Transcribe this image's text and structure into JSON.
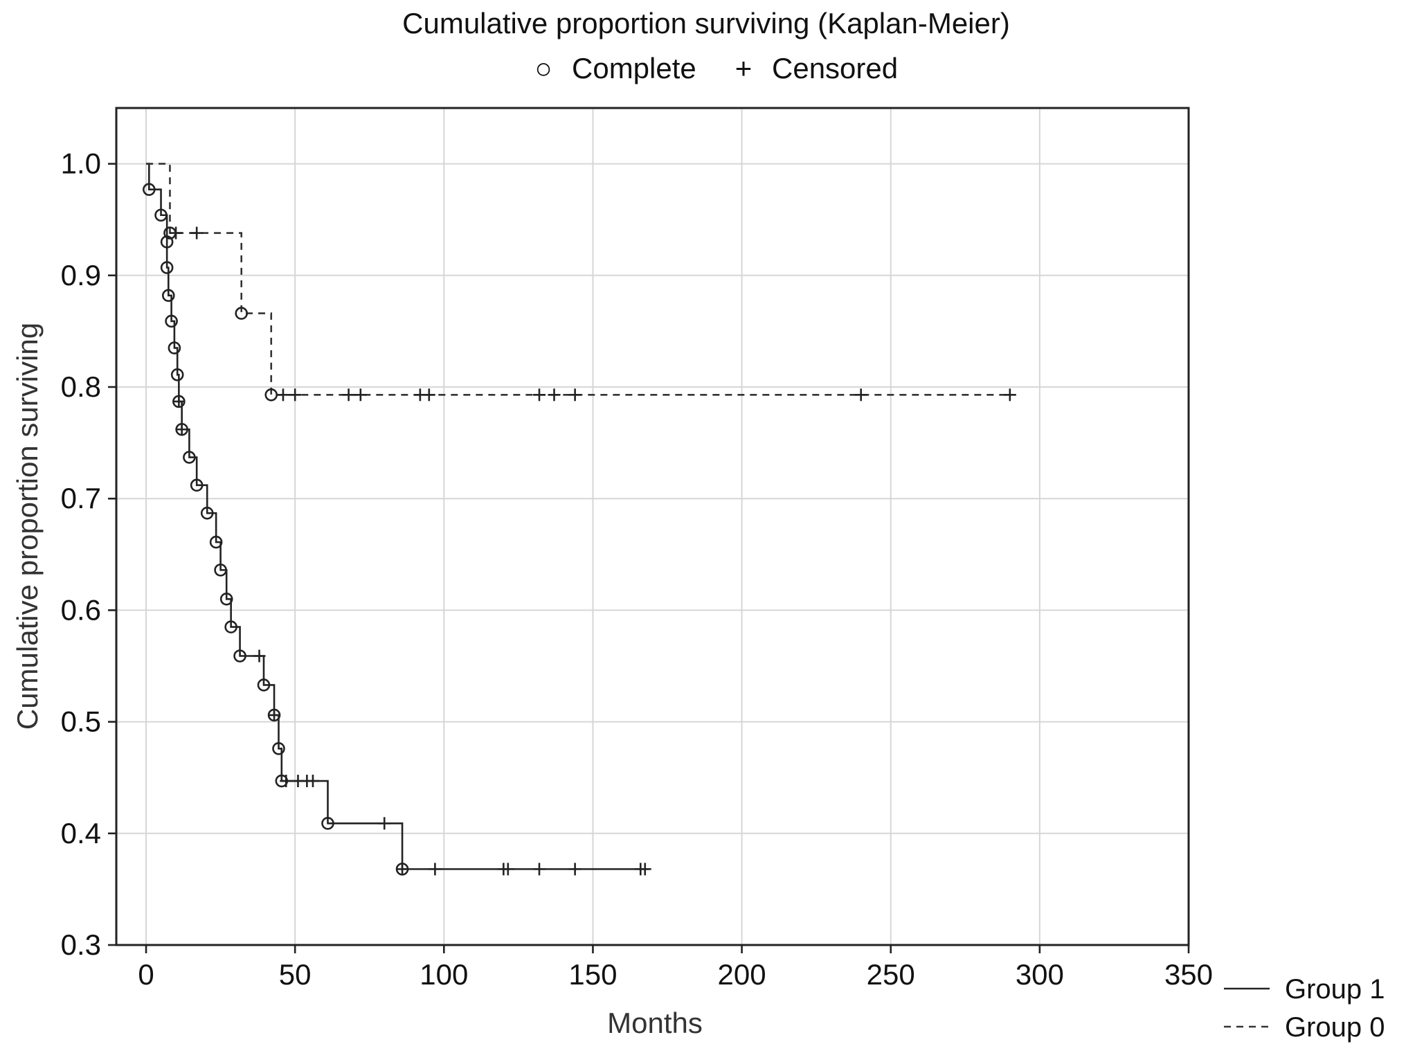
{
  "chart_data": {
    "type": "line",
    "title": "Cumulative proportion surviving (Kaplan-Meier)",
    "xlabel": "Months",
    "ylabel": "Cumulative proportion surviving",
    "xlim": [
      -10,
      350
    ],
    "ylim": [
      0.3,
      1.05
    ],
    "x_ticks": [
      0,
      50,
      100,
      150,
      200,
      250,
      300,
      350
    ],
    "y_ticks": [
      0.3,
      0.4,
      0.5,
      0.6,
      0.7,
      0.8,
      0.9,
      1.0
    ],
    "x_tick_labels": [
      "0",
      "50",
      "100",
      "150",
      "200",
      "250",
      "300",
      "350"
    ],
    "y_tick_labels": [
      "0.3",
      "0.4",
      "0.5",
      "0.6",
      "0.7",
      "0.8",
      "0.9",
      "1.0"
    ],
    "grid": true,
    "marker_legend": {
      "complete_symbol": "○",
      "complete_label": "Complete",
      "censored_symbol": "+",
      "censored_label": "Censored"
    },
    "series": [
      {
        "name": "Group 1",
        "line_style": "solid",
        "steps": [
          [
            0,
            1.0
          ],
          [
            1,
            0.977
          ],
          [
            5,
            0.954
          ],
          [
            7,
            0.93
          ],
          [
            7,
            0.907
          ],
          [
            7.5,
            0.882
          ],
          [
            8.5,
            0.859
          ],
          [
            9.5,
            0.835
          ],
          [
            10.5,
            0.811
          ],
          [
            11,
            0.787
          ],
          [
            12,
            0.762
          ],
          [
            14.5,
            0.737
          ],
          [
            17,
            0.712
          ],
          [
            20.5,
            0.687
          ],
          [
            23.5,
            0.661
          ],
          [
            25,
            0.636
          ],
          [
            27,
            0.61
          ],
          [
            28.5,
            0.585
          ],
          [
            31.5,
            0.559
          ],
          [
            39.5,
            0.533
          ],
          [
            43,
            0.506
          ],
          [
            44.5,
            0.476
          ],
          [
            45.5,
            0.447
          ],
          [
            61,
            0.409
          ],
          [
            86,
            0.368
          ]
        ],
        "end_x": 169,
        "complete": [
          [
            1,
            0.977
          ],
          [
            5,
            0.954
          ],
          [
            7,
            0.93
          ],
          [
            7,
            0.907
          ],
          [
            7.5,
            0.882
          ],
          [
            8.5,
            0.859
          ],
          [
            9.5,
            0.835
          ],
          [
            10.5,
            0.811
          ],
          [
            11,
            0.787
          ],
          [
            12,
            0.762
          ],
          [
            14.5,
            0.737
          ],
          [
            17,
            0.712
          ],
          [
            20.5,
            0.687
          ],
          [
            23.5,
            0.661
          ],
          [
            25,
            0.636
          ],
          [
            27,
            0.61
          ],
          [
            28.5,
            0.585
          ],
          [
            31.5,
            0.559
          ],
          [
            39.5,
            0.533
          ],
          [
            43,
            0.506
          ],
          [
            44.5,
            0.476
          ],
          [
            45.5,
            0.447
          ],
          [
            61,
            0.409
          ],
          [
            86,
            0.368
          ]
        ],
        "censored": [
          [
            11,
            0.787
          ],
          [
            12,
            0.762
          ],
          [
            38,
            0.559
          ],
          [
            43,
            0.506
          ],
          [
            47,
            0.447
          ],
          [
            51,
            0.447
          ],
          [
            54,
            0.447
          ],
          [
            56,
            0.447
          ],
          [
            80,
            0.409
          ],
          [
            86,
            0.368
          ],
          [
            97,
            0.368
          ],
          [
            120,
            0.368
          ],
          [
            121.5,
            0.368
          ],
          [
            132,
            0.368
          ],
          [
            144,
            0.368
          ],
          [
            166,
            0.368
          ],
          [
            167.5,
            0.368
          ]
        ]
      },
      {
        "name": "Group 0",
        "line_style": "dashed",
        "steps": [
          [
            0,
            1.0
          ],
          [
            8,
            0.938
          ],
          [
            32,
            0.866
          ],
          [
            42,
            0.793
          ]
        ],
        "end_x": 290,
        "complete": [
          [
            8,
            0.938
          ],
          [
            32,
            0.866
          ],
          [
            42,
            0.793
          ]
        ],
        "censored": [
          [
            10,
            0.938
          ],
          [
            17,
            0.938
          ],
          [
            46,
            0.793
          ],
          [
            50,
            0.793
          ],
          [
            68,
            0.793
          ],
          [
            72,
            0.793
          ],
          [
            92,
            0.793
          ],
          [
            95,
            0.793
          ],
          [
            132,
            0.793
          ],
          [
            137,
            0.793
          ],
          [
            144,
            0.793
          ],
          [
            240,
            0.793
          ],
          [
            290,
            0.793
          ]
        ]
      }
    ]
  }
}
